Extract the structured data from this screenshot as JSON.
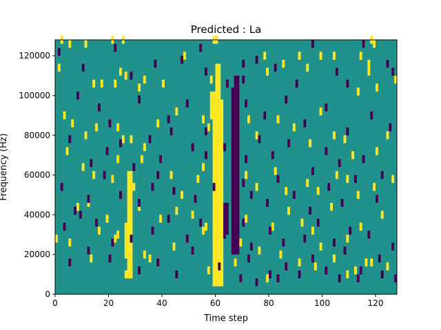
{
  "chart_data": {
    "type": "heatmap",
    "title": "Predicted : La",
    "xlabel": "Time step",
    "ylabel": "Frequency (Hz)",
    "xlim": [
      0,
      128
    ],
    "ylim": [
      0,
      128000
    ],
    "x_ticks": [
      0,
      20,
      40,
      60,
      80,
      100,
      120
    ],
    "x_tick_labels": [
      "0",
      "20",
      "40",
      "60",
      "80",
      "100",
      "120"
    ],
    "y_ticks": [
      0,
      20000,
      40000,
      60000,
      80000,
      100000,
      120000
    ],
    "y_tick_labels": [
      "0",
      "20000",
      "40000",
      "60000",
      "80000",
      "100000",
      "120000"
    ],
    "colors": {
      "background": "#21918c",
      "high": "#fde725",
      "low": "#440154"
    },
    "bands": [
      {
        "kind": "high",
        "x_start": 59,
        "x_end": 63,
        "y_start": 4000,
        "y_end": 98000
      },
      {
        "kind": "high",
        "x_start": 60,
        "x_end": 62,
        "y_start": 98000,
        "y_end": 116000
      },
      {
        "kind": "high",
        "x_start": 27,
        "x_end": 29,
        "y_start": 8000,
        "y_end": 62000
      },
      {
        "kind": "high",
        "x_start": 26,
        "x_end": 28,
        "y_start": 18000,
        "y_end": 36000
      },
      {
        "kind": "high",
        "x_start": 26,
        "x_end": 29,
        "y_start": 8000,
        "y_end": 12000
      },
      {
        "kind": "high",
        "x_start": 58,
        "x_end": 60,
        "y_start": 88000,
        "y_end": 102000
      },
      {
        "kind": "low",
        "x_start": 66,
        "x_end": 69,
        "y_start": 20000,
        "y_end": 104000
      },
      {
        "kind": "low",
        "x_start": 67,
        "x_end": 69,
        "y_start": 104000,
        "y_end": 110000
      },
      {
        "kind": "low",
        "x_start": 63,
        "x_end": 65,
        "y_start": 30000,
        "y_end": 46000
      }
    ],
    "cells": {
      "high": [
        [
          2,
          126000
        ],
        [
          1,
          112000
        ],
        [
          5,
          124000
        ],
        [
          11,
          124000
        ],
        [
          21,
          126000
        ],
        [
          25,
          126000
        ],
        [
          59,
          126000
        ],
        [
          60,
          126000
        ],
        [
          118,
          126000
        ],
        [
          119,
          124000
        ],
        [
          48,
          118000
        ],
        [
          78,
          118000
        ],
        [
          91,
          118000
        ],
        [
          99,
          118000
        ],
        [
          114,
          118000
        ],
        [
          117,
          114000
        ],
        [
          117,
          110000
        ],
        [
          14,
          104000
        ],
        [
          17,
          104000
        ],
        [
          22,
          104000
        ],
        [
          24,
          110000
        ],
        [
          26,
          108000
        ],
        [
          33,
          106000
        ],
        [
          31,
          102000
        ],
        [
          40,
          104000
        ],
        [
          58,
          106000
        ],
        [
          79,
          110000
        ],
        [
          85,
          114000
        ],
        [
          94,
          112000
        ],
        [
          104,
          118000
        ],
        [
          113,
          100000
        ],
        [
          120,
          102000
        ],
        [
          127,
          106000
        ],
        [
          3,
          88000
        ],
        [
          6,
          84000
        ],
        [
          11,
          78000
        ],
        [
          15,
          82000
        ],
        [
          23,
          82000
        ],
        [
          25,
          76000
        ],
        [
          28,
          76000
        ],
        [
          33,
          72000
        ],
        [
          38,
          84000
        ],
        [
          45,
          90000
        ],
        [
          55,
          86000
        ],
        [
          57,
          82000
        ],
        [
          72,
          86000
        ],
        [
          75,
          78000
        ],
        [
          83,
          86000
        ],
        [
          89,
          82000
        ],
        [
          95,
          74000
        ],
        [
          99,
          90000
        ],
        [
          104,
          78000
        ],
        [
          108,
          76000
        ],
        [
          111,
          68000
        ],
        [
          120,
          70000
        ],
        [
          124,
          78000
        ],
        [
          4,
          70000
        ],
        [
          10,
          62000
        ],
        [
          14,
          58000
        ],
        [
          21,
          56000
        ],
        [
          23,
          66000
        ],
        [
          29,
          52000
        ],
        [
          32,
          66000
        ],
        [
          43,
          58000
        ],
        [
          47,
          48000
        ],
        [
          53,
          56000
        ],
        [
          55,
          62000
        ],
        [
          71,
          58000
        ],
        [
          75,
          52000
        ],
        [
          82,
          60000
        ],
        [
          86,
          50000
        ],
        [
          94,
          54000
        ],
        [
          98,
          50000
        ],
        [
          105,
          58000
        ],
        [
          109,
          56000
        ],
        [
          113,
          48000
        ],
        [
          119,
          52000
        ],
        [
          126,
          56000
        ],
        [
          8,
          42000
        ],
        [
          12,
          44000
        ],
        [
          19,
          36000
        ],
        [
          23,
          28000
        ],
        [
          31,
          42000
        ],
        [
          39,
          36000
        ],
        [
          45,
          40000
        ],
        [
          51,
          38000
        ],
        [
          56,
          32000
        ],
        [
          71,
          36000
        ],
        [
          81,
          32000
        ],
        [
          87,
          40000
        ],
        [
          92,
          34000
        ],
        [
          96,
          30000
        ],
        [
          103,
          42000
        ],
        [
          109,
          26000
        ],
        [
          114,
          32000
        ],
        [
          122,
          38000
        ],
        [
          0,
          26000
        ],
        [
          5,
          24000
        ],
        [
          16,
          30000
        ],
        [
          22,
          26000
        ],
        [
          33,
          18000
        ],
        [
          44,
          22000
        ],
        [
          55,
          30000
        ],
        [
          69,
          24000
        ],
        [
          76,
          20000
        ],
        [
          84,
          18000
        ],
        [
          91,
          14000
        ],
        [
          99,
          22000
        ],
        [
          104,
          16000
        ],
        [
          112,
          10000
        ],
        [
          118,
          14000
        ],
        [
          124,
          12000
        ],
        [
          13,
          16000
        ],
        [
          35,
          16000
        ],
        [
          57,
          10000
        ],
        [
          67,
          14000
        ],
        [
          79,
          6000
        ],
        [
          97,
          12000
        ],
        [
          109,
          8000
        ],
        [
          116,
          14000
        ]
      ],
      "low": [
        [
          1,
          120000
        ],
        [
          22,
          122000
        ],
        [
          47,
          116000
        ],
        [
          54,
          122000
        ],
        [
          70,
          114000
        ],
        [
          75,
          116000
        ],
        [
          96,
          124000
        ],
        [
          105,
          110000
        ],
        [
          115,
          124000
        ],
        [
          124,
          114000
        ],
        [
          10,
          112000
        ],
        [
          28,
          108000
        ],
        [
          37,
          114000
        ],
        [
          56,
          110000
        ],
        [
          64,
          104000
        ],
        [
          70,
          106000
        ],
        [
          82,
          112000
        ],
        [
          90,
          104000
        ],
        [
          109,
          104000
        ],
        [
          126,
          110000
        ],
        [
          8,
          98000
        ],
        [
          16,
          92000
        ],
        [
          20,
          84000
        ],
        [
          31,
          96000
        ],
        [
          42,
          86000
        ],
        [
          49,
          94000
        ],
        [
          56,
          80000
        ],
        [
          71,
          94000
        ],
        [
          78,
          88000
        ],
        [
          86,
          96000
        ],
        [
          93,
          84000
        ],
        [
          101,
          92000
        ],
        [
          109,
          80000
        ],
        [
          118,
          88000
        ],
        [
          125,
          82000
        ],
        [
          5,
          76000
        ],
        [
          13,
          64000
        ],
        [
          19,
          70000
        ],
        [
          24,
          74000
        ],
        [
          29,
          62000
        ],
        [
          35,
          76000
        ],
        [
          39,
          66000
        ],
        [
          43,
          80000
        ],
        [
          51,
          72000
        ],
        [
          56,
          68000
        ],
        [
          63,
          72000
        ],
        [
          71,
          66000
        ],
        [
          76,
          76000
        ],
        [
          81,
          68000
        ],
        [
          87,
          74000
        ],
        [
          96,
          60000
        ],
        [
          101,
          70000
        ],
        [
          106,
          64000
        ],
        [
          115,
          66000
        ],
        [
          122,
          58000
        ],
        [
          2,
          52000
        ],
        [
          7,
          40000
        ],
        [
          12,
          46000
        ],
        [
          18,
          58000
        ],
        [
          24,
          48000
        ],
        [
          31,
          44000
        ],
        [
          36,
          52000
        ],
        [
          38,
          58000
        ],
        [
          44,
          50000
        ],
        [
          52,
          46000
        ],
        [
          59,
          52000
        ],
        [
          70,
          54000
        ],
        [
          73,
          48000
        ],
        [
          79,
          44000
        ],
        [
          83,
          56000
        ],
        [
          89,
          48000
        ],
        [
          95,
          40000
        ],
        [
          102,
          52000
        ],
        [
          107,
          44000
        ],
        [
          112,
          56000
        ],
        [
          120,
          46000
        ],
        [
          3,
          32000
        ],
        [
          9,
          38000
        ],
        [
          15,
          34000
        ],
        [
          21,
          24000
        ],
        [
          28,
          26000
        ],
        [
          36,
          30000
        ],
        [
          42,
          36000
        ],
        [
          49,
          26000
        ],
        [
          54,
          34000
        ],
        [
          63,
          28000
        ],
        [
          70,
          34000
        ],
        [
          73,
          22000
        ],
        [
          80,
          30000
        ],
        [
          85,
          24000
        ],
        [
          93,
          26000
        ],
        [
          98,
          34000
        ],
        [
          104,
          24000
        ],
        [
          110,
          30000
        ],
        [
          117,
          28000
        ],
        [
          126,
          22000
        ],
        [
          5,
          14000
        ],
        [
          12,
          20000
        ],
        [
          20,
          16000
        ],
        [
          31,
          10000
        ],
        [
          38,
          14000
        ],
        [
          45,
          8000
        ],
        [
          51,
          20000
        ],
        [
          61,
          12000
        ],
        [
          72,
          16000
        ],
        [
          80,
          8000
        ],
        [
          86,
          12000
        ],
        [
          96,
          16000
        ],
        [
          101,
          10000
        ],
        [
          108,
          20000
        ],
        [
          114,
          10000
        ],
        [
          121,
          16000
        ],
        [
          127,
          6000
        ],
        [
          69,
          6000
        ],
        [
          75,
          4000
        ],
        [
          83,
          6000
        ],
        [
          91,
          8000
        ],
        [
          106,
          6000
        ],
        [
          113,
          6000
        ],
        [
          122,
          8000
        ]
      ]
    }
  }
}
